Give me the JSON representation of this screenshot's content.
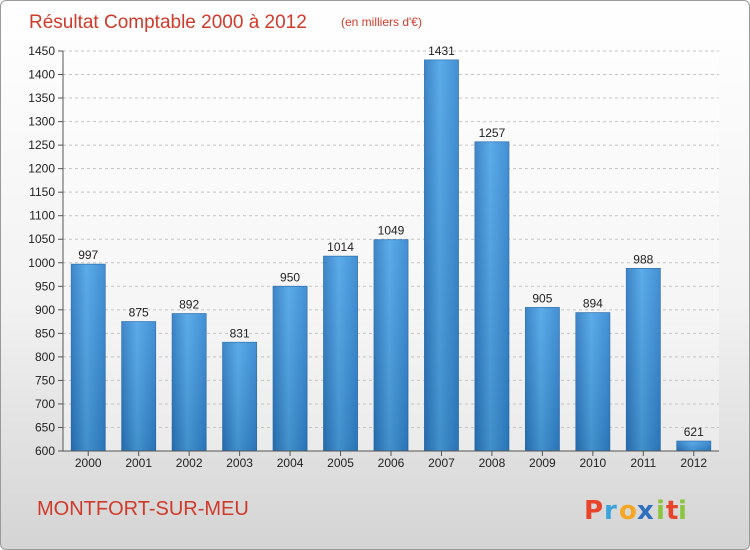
{
  "chart_data": {
    "type": "bar",
    "title": "Résultat Comptable 2000 à 2012",
    "subtitle": "(en milliers d'€)",
    "categories": [
      "2000",
      "2001",
      "2002",
      "2003",
      "2004",
      "2005",
      "2006",
      "2007",
      "2008",
      "2009",
      "2010",
      "2011",
      "2012"
    ],
    "values": [
      997,
      875,
      892,
      831,
      950,
      1014,
      1049,
      1431,
      1257,
      905,
      894,
      988,
      621
    ],
    "ylim": [
      600,
      1450
    ],
    "yticks": [
      600,
      650,
      700,
      750,
      800,
      850,
      900,
      950,
      1000,
      1050,
      1100,
      1150,
      1200,
      1250,
      1300,
      1350,
      1400,
      1450
    ],
    "grid": true,
    "bar_color": "#3a8fd6"
  },
  "footer": {
    "city": "MONTFORT-SUR-MEU",
    "logo_letters": [
      "P",
      "r",
      "o",
      "x",
      "i",
      "t",
      "i"
    ],
    "logo_colors": [
      "#e8442b",
      "#3aa3dc",
      "#f5a623",
      "#2e6fbf",
      "#8cc63f",
      "#e8442b",
      "#8cc63f"
    ]
  }
}
